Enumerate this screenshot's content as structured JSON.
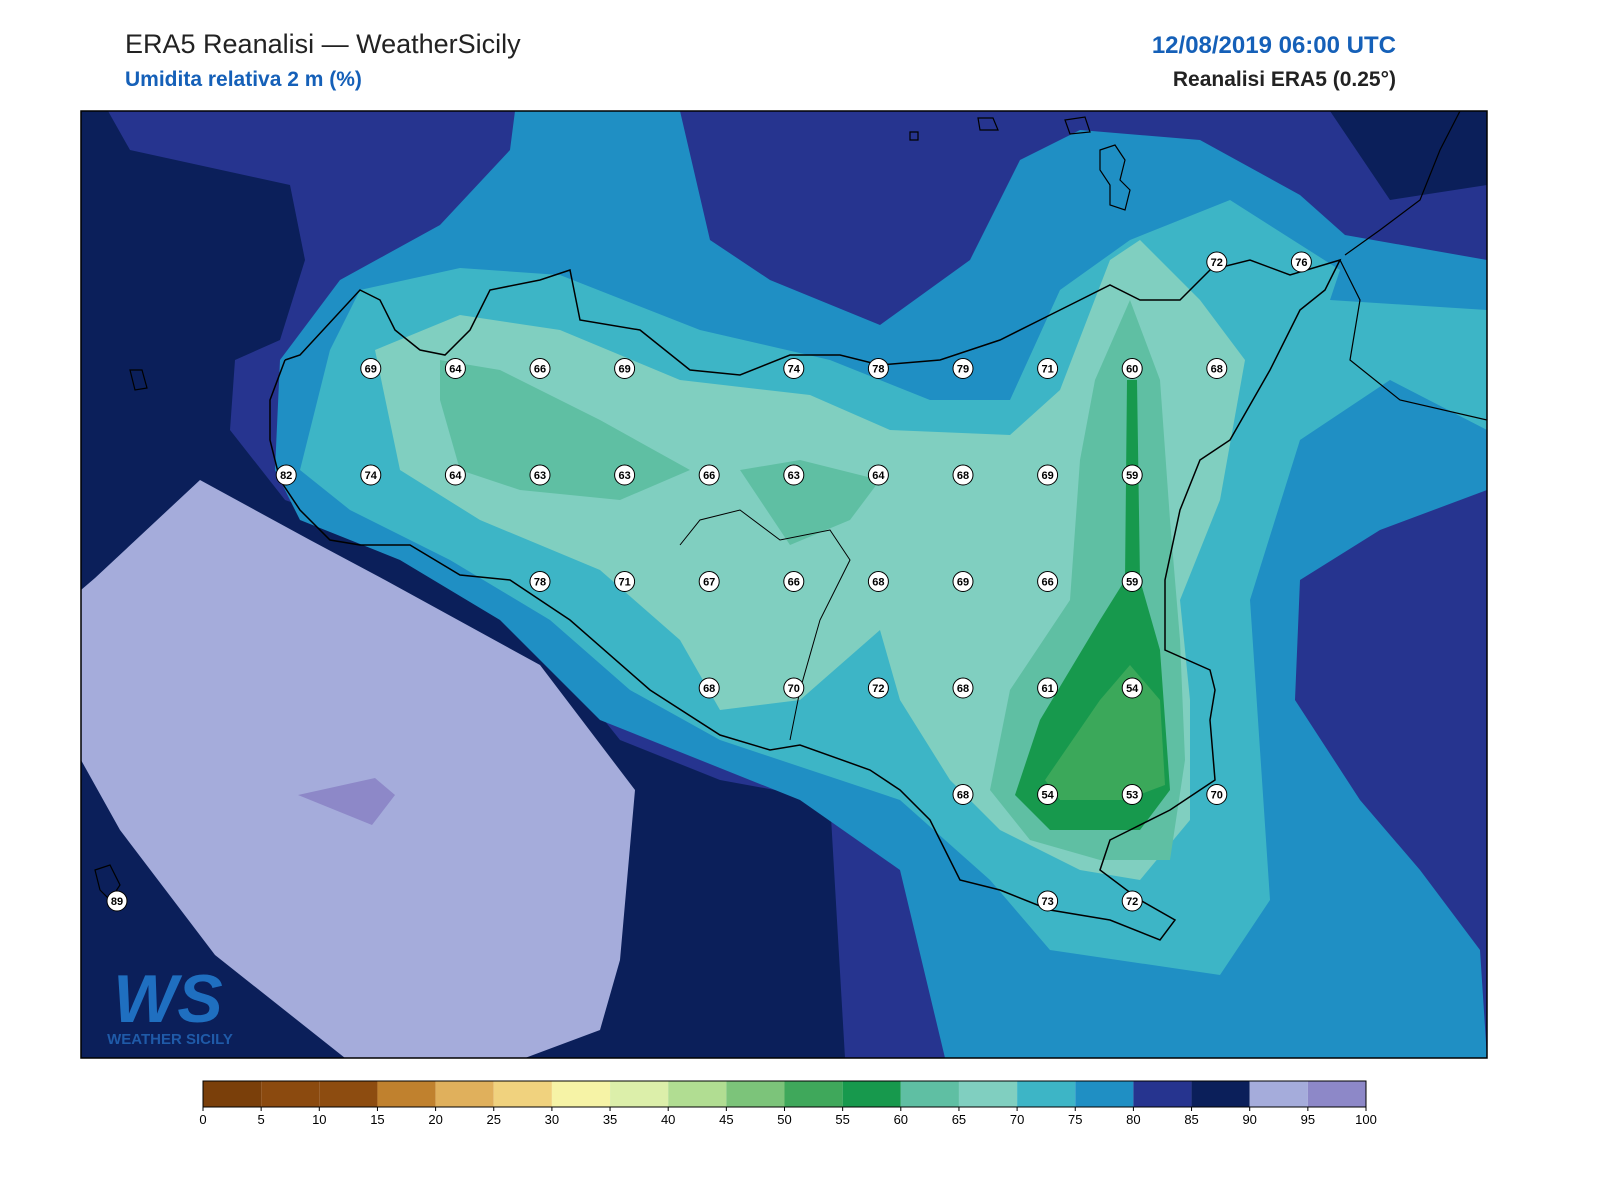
{
  "header": {
    "title": "ERA5 Reanalisi — WeatherSicily",
    "subtitle": "Umidita relativa 2 m (%)",
    "datetime": "12/08/2019 06:00 UTC",
    "source": "Reanalisi ERA5 (0.25°)"
  },
  "stations": {
    "rows": [
      [
        null,
        null,
        null,
        null,
        null,
        null,
        null,
        null,
        null,
        null,
        null,
        null,
        null,
        72,
        76
      ],
      [
        null,
        null,
        null,
        69,
        64,
        66,
        69,
        null,
        74,
        78,
        79,
        71,
        60,
        68,
        null
      ],
      [
        null,
        null,
        82,
        74,
        64,
        63,
        63,
        66,
        63,
        64,
        68,
        69,
        59,
        null,
        null
      ],
      [
        null,
        null,
        null,
        null,
        null,
        78,
        71,
        67,
        66,
        68,
        69,
        66,
        59,
        null,
        null
      ],
      [
        null,
        null,
        null,
        null,
        null,
        null,
        null,
        68,
        70,
        72,
        68,
        61,
        54,
        null,
        null
      ],
      [
        null,
        null,
        null,
        null,
        null,
        null,
        null,
        null,
        null,
        null,
        68,
        54,
        53,
        70,
        null
      ],
      [
        89,
        null,
        null,
        null,
        null,
        null,
        null,
        null,
        null,
        null,
        null,
        73,
        72,
        null,
        null
      ]
    ]
  },
  "colorbar": {
    "ticks": [
      0,
      5,
      10,
      15,
      20,
      25,
      30,
      35,
      40,
      45,
      50,
      55,
      60,
      65,
      70,
      75,
      80,
      85,
      90,
      95,
      100
    ],
    "colors": [
      "#7a3f0a",
      "#8b4a0f",
      "#8d4c10",
      "#c0812e",
      "#e0b05c",
      "#f0d27e",
      "#f6f3a6",
      "#dcefaa",
      "#b1dd92",
      "#7cc47a",
      "#3fa85b",
      "#17994d",
      "#5fbfa3",
      "#80cfc0",
      "#3db5c6",
      "#1f8fc4",
      "#26348f",
      "#0b1f5a",
      "#a5acdb",
      "#8d88c8"
    ]
  },
  "logo": {
    "mark": "WS",
    "caption": "WEATHER SICILY"
  }
}
